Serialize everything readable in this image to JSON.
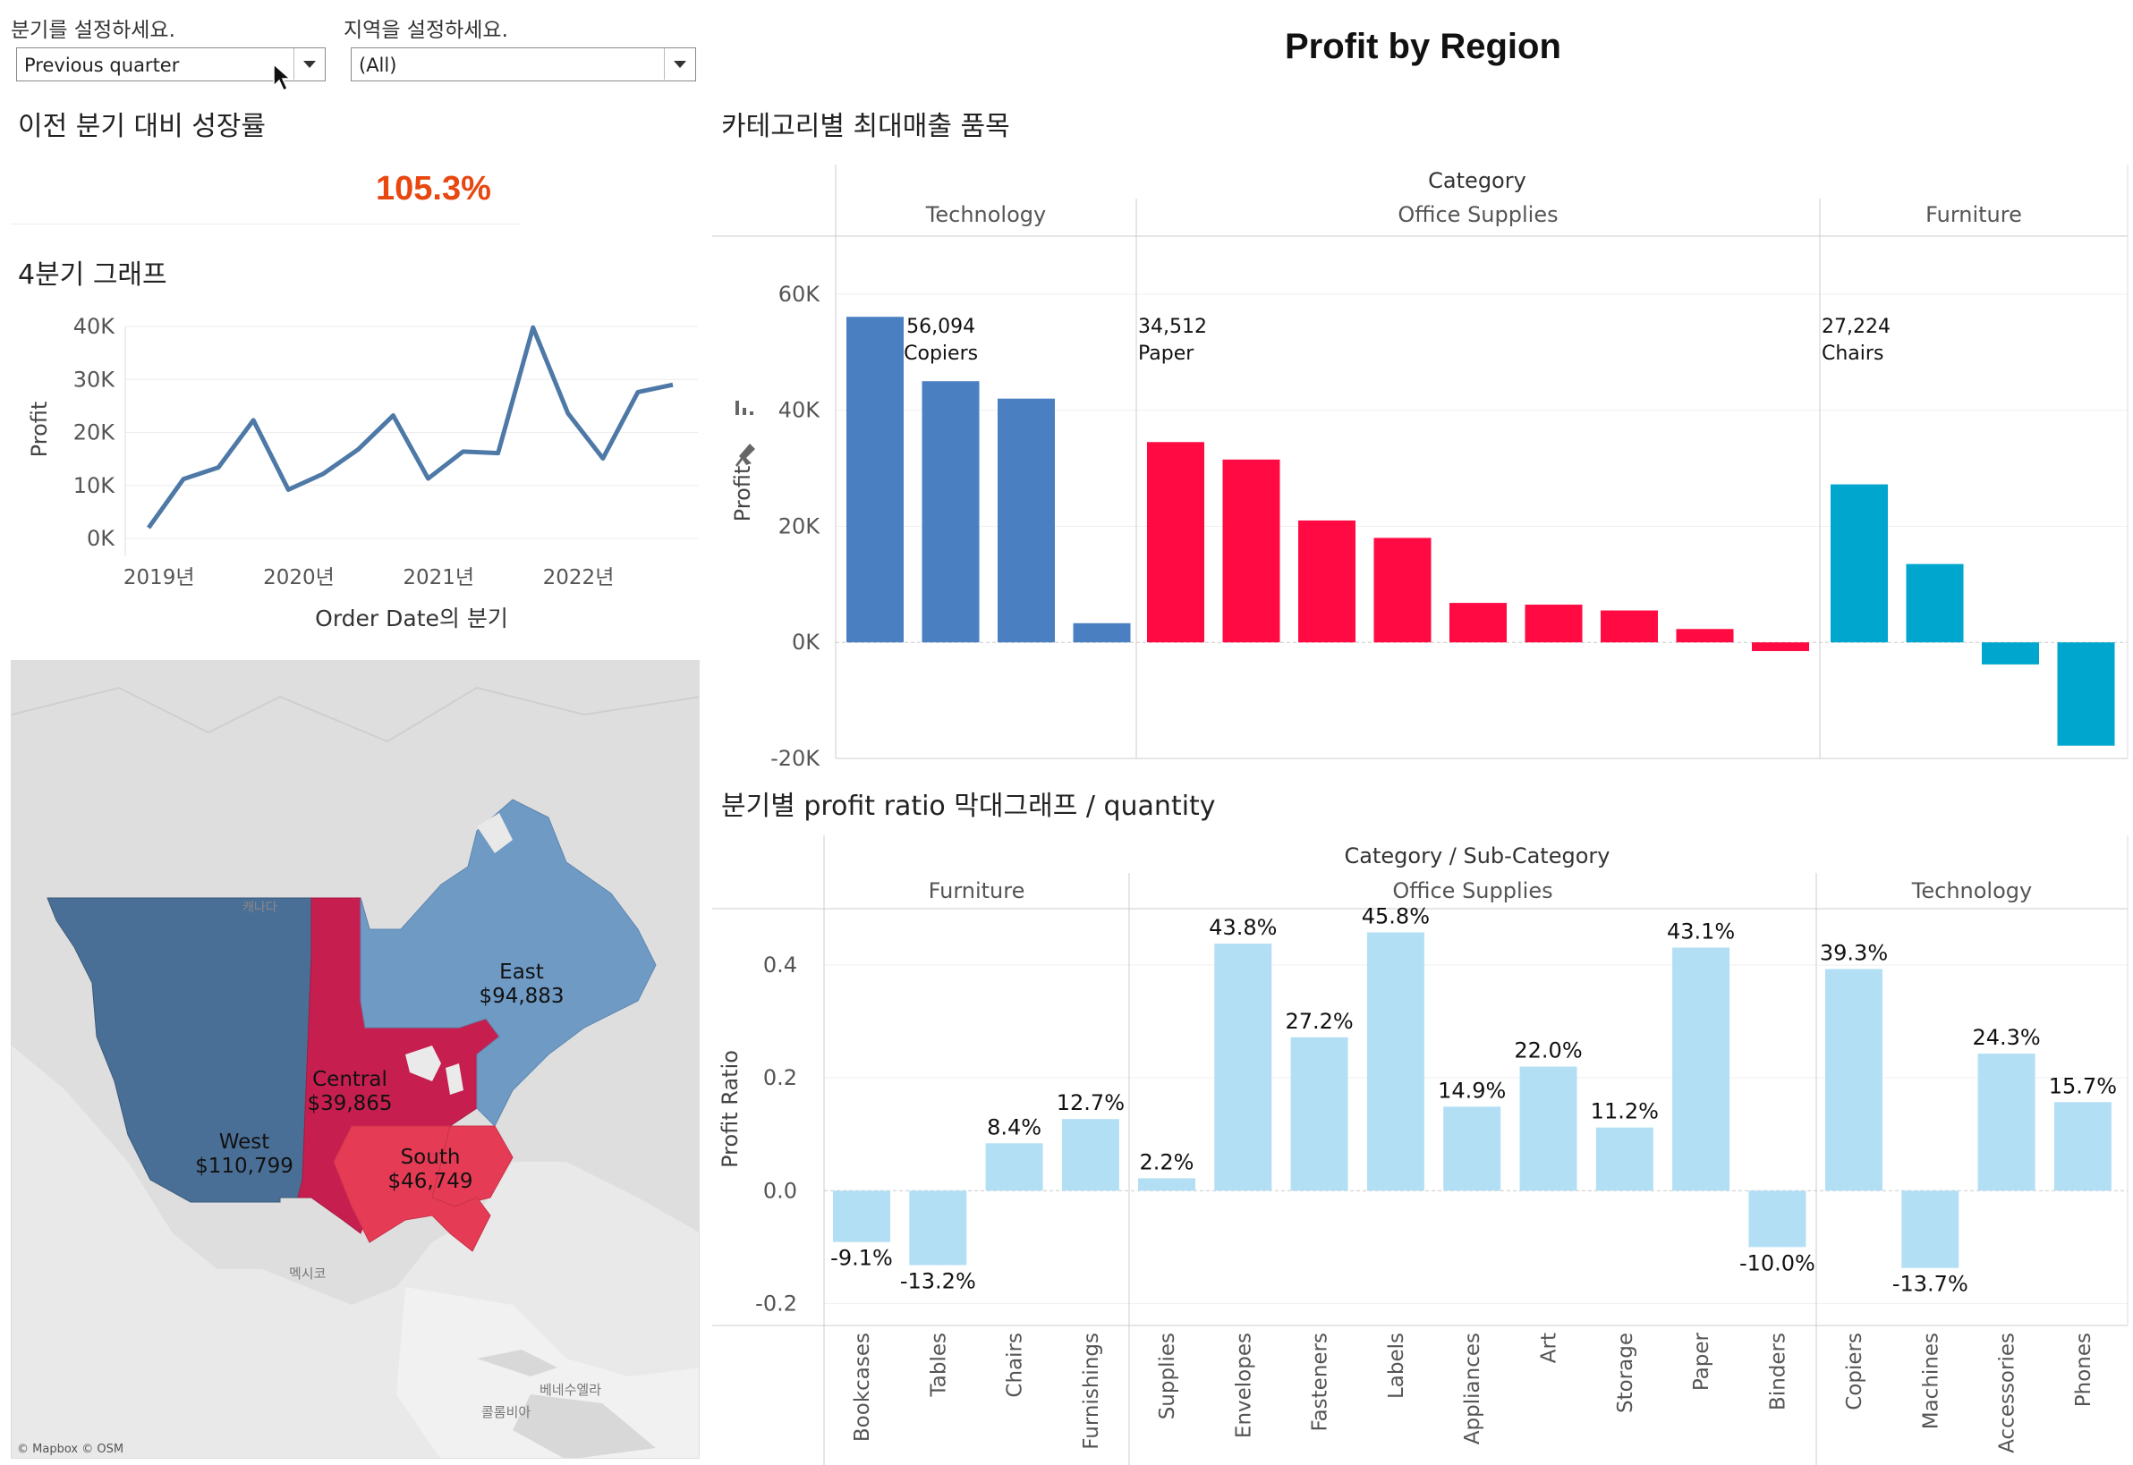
{
  "filters": {
    "quarter": {
      "label": "분기를 설정하세요.",
      "value": "Previous quarter"
    },
    "region": {
      "label": "지역을 설정하세요.",
      "value": "(All)"
    }
  },
  "title": "Profit by Region",
  "growth": {
    "title": "이전 분기 대비 성장률",
    "value": "105.3%",
    "color": "#e8470f"
  },
  "quarter_chart": {
    "title": "4분기 그래프",
    "xlabel": "Order Date의 분기",
    "ylabel": "Profit",
    "yticks": [
      "40K",
      "30K",
      "20K",
      "10K",
      "0K"
    ],
    "xticks": [
      "2019년",
      "2020년",
      "2021년",
      "2022년"
    ]
  },
  "map": {
    "regions": [
      {
        "name": "West",
        "value": "$110,799",
        "color": "#4a6f96"
      },
      {
        "name": "Central",
        "value": "$39,865",
        "color": "#c61f4f"
      },
      {
        "name": "East",
        "value": "$94,883",
        "color": "#6f9ac4"
      },
      {
        "name": "South",
        "value": "$46,749",
        "color": "#e63b55"
      }
    ],
    "places": {
      "canada": "캐나다",
      "mexico": "멕시코",
      "venezuela": "베네수엘라",
      "colombia": "콜롬비아"
    },
    "credit": "© Mapbox © OSM"
  },
  "chart_data": [
    {
      "type": "line",
      "title": "4분기 그래프",
      "xlabel": "Order Date의 분기",
      "ylabel": "Profit",
      "x": [
        "2019 Q1",
        "2019 Q2",
        "2019 Q3",
        "2019 Q4",
        "2020 Q1",
        "2020 Q2",
        "2020 Q3",
        "2020 Q4",
        "2021 Q1",
        "2021 Q2",
        "2021 Q3",
        "2021 Q4",
        "2022 Q1",
        "2022 Q2",
        "2022 Q3",
        "2022 Q4"
      ],
      "series": [
        {
          "values": [
            2000,
            11200,
            13400,
            22300,
            9200,
            12200,
            16800,
            23200,
            11300,
            16400,
            16100,
            39800,
            23600,
            15100,
            27600,
            29000
          ],
          "color": "#4e79a7"
        }
      ],
      "ylim": [
        0,
        40000
      ],
      "yticks": [
        0,
        10000,
        20000,
        30000,
        40000
      ]
    },
    {
      "type": "bar",
      "title": "카테고리별 최대매출 품목",
      "header": "Category",
      "ylabel": "Profit",
      "ylim": [
        -20000,
        70000
      ],
      "yticks": [
        "60K",
        "40K",
        "20K",
        "0K",
        "-20K"
      ],
      "groups": [
        {
          "name": "Technology",
          "color": "#4a7fc1",
          "values": [
            56094,
            45000,
            42000,
            3300
          ],
          "annotation": {
            "value": "56,094",
            "label": "Copiers"
          }
        },
        {
          "name": "Office Supplies",
          "color": "#ff0a43",
          "values": [
            34512,
            31500,
            21000,
            18000,
            6800,
            6500,
            5500,
            2300,
            -1500
          ],
          "annotation": {
            "value": "34,512",
            "label": "Paper"
          }
        },
        {
          "name": "Furniture",
          "color": "#00a6cd",
          "values": [
            27224,
            13500,
            -3800,
            -17800
          ],
          "annotation": {
            "value": "27,224",
            "label": "Chairs"
          }
        }
      ]
    },
    {
      "type": "bar",
      "title": "분기별 profit ratio 막대그래프 / quantity",
      "header": "Category  /  Sub-Category",
      "ylabel": "Profit Ratio",
      "ylim": [
        -0.22,
        0.5
      ],
      "yticks": [
        "0.4",
        "0.2",
        "0.0",
        "-0.2"
      ],
      "color": "#b3dff5",
      "groups": [
        {
          "name": "Furniture",
          "items": [
            {
              "name": "Bookcases",
              "value": -0.091,
              "label": "-9.1%"
            },
            {
              "name": "Tables",
              "value": -0.132,
              "label": "-13.2%"
            },
            {
              "name": "Chairs",
              "value": 0.084,
              "label": "8.4%"
            },
            {
              "name": "Furnishings",
              "value": 0.127,
              "label": "12.7%"
            }
          ]
        },
        {
          "name": "Office Supplies",
          "items": [
            {
              "name": "Supplies",
              "value": 0.022,
              "label": "2.2%"
            },
            {
              "name": "Envelopes",
              "value": 0.438,
              "label": "43.8%"
            },
            {
              "name": "Fasteners",
              "value": 0.272,
              "label": "27.2%"
            },
            {
              "name": "Labels",
              "value": 0.458,
              "label": "45.8%"
            },
            {
              "name": "Appliances",
              "value": 0.149,
              "label": "14.9%"
            },
            {
              "name": "Art",
              "value": 0.22,
              "label": "22.0%"
            },
            {
              "name": "Storage",
              "value": 0.112,
              "label": "11.2%"
            },
            {
              "name": "Paper",
              "value": 0.431,
              "label": "43.1%"
            },
            {
              "name": "Binders",
              "value": -0.1,
              "label": "-10.0%"
            }
          ]
        },
        {
          "name": "Technology",
          "items": [
            {
              "name": "Copiers",
              "value": 0.393,
              "label": "39.3%"
            },
            {
              "name": "Machines",
              "value": -0.137,
              "label": "-13.7%"
            },
            {
              "name": "Accessories",
              "value": 0.243,
              "label": "24.3%"
            },
            {
              "name": "Phones",
              "value": 0.157,
              "label": "15.7%"
            }
          ]
        }
      ]
    }
  ]
}
